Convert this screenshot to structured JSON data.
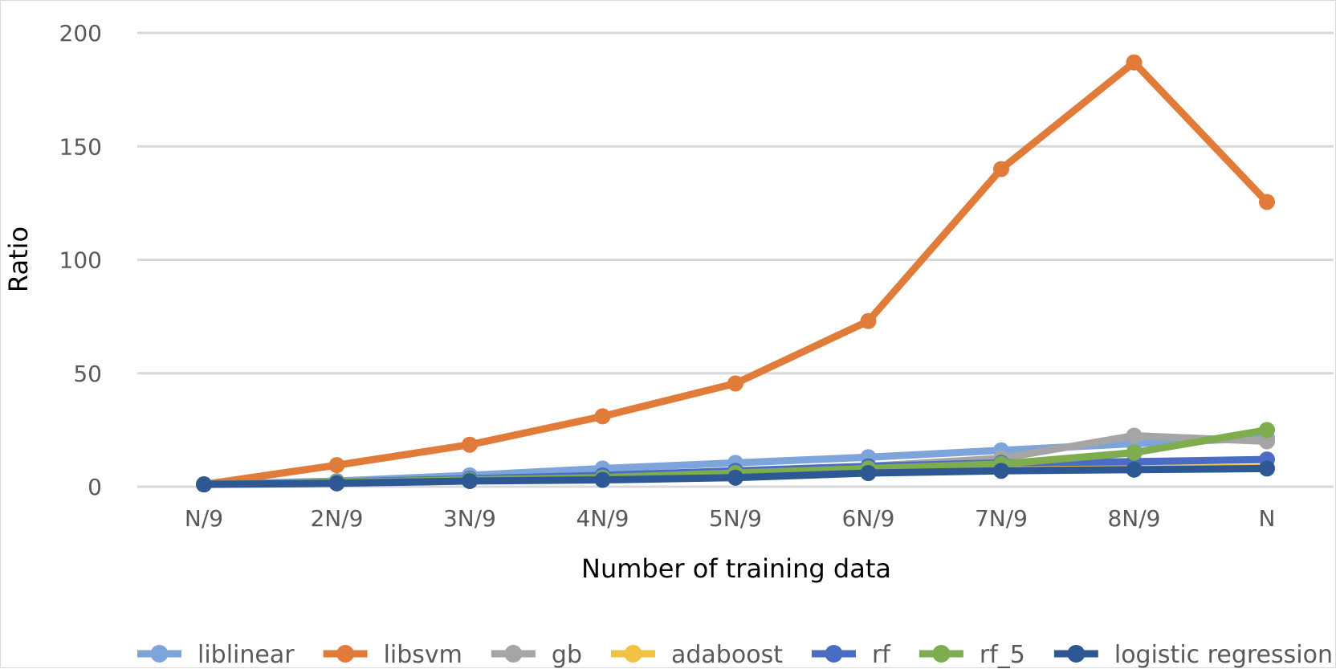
{
  "chart_data": {
    "type": "line",
    "title": "",
    "xlabel": "Number of training data",
    "ylabel": "Ratio",
    "categories": [
      "N/9",
      "2N/9",
      "3N/9",
      "4N/9",
      "5N/9",
      "6N/9",
      "7N/9",
      "8N/9",
      "N"
    ],
    "ylim": [
      0,
      200
    ],
    "yticks": [
      0,
      50,
      100,
      150,
      200
    ],
    "grid": true,
    "legend_position": "bottom",
    "series": [
      {
        "name": "liblinear",
        "color": "#7ea4dc",
        "values": [
          1,
          2.5,
          5,
          8,
          10.5,
          13,
          16,
          19,
          21.5
        ]
      },
      {
        "name": "libsvm",
        "color": "#e07b39",
        "values": [
          1,
          9.5,
          18.5,
          31,
          45.5,
          73,
          140,
          187,
          125.5
        ]
      },
      {
        "name": "gb",
        "color": "#a5a5a5",
        "values": [
          1,
          1.5,
          2.5,
          4,
          6.5,
          9,
          12.5,
          22.5,
          20
        ]
      },
      {
        "name": "adaboost",
        "color": "#f2c242",
        "values": [
          1,
          1.5,
          3,
          4,
          5.5,
          6,
          7.5,
          8,
          8.5
        ]
      },
      {
        "name": "rf",
        "color": "#4a6cc5",
        "values": [
          1,
          2,
          3.5,
          5,
          7,
          9,
          10.5,
          11,
          12
        ]
      },
      {
        "name": "rf_5",
        "color": "#7ead4f",
        "values": [
          1,
          2,
          3,
          4,
          6,
          8,
          10,
          15,
          25
        ]
      },
      {
        "name": "logistic regression",
        "color": "#2e5894",
        "values": [
          1,
          1.5,
          2.5,
          3,
          4,
          6,
          7,
          7.5,
          8
        ]
      }
    ]
  }
}
